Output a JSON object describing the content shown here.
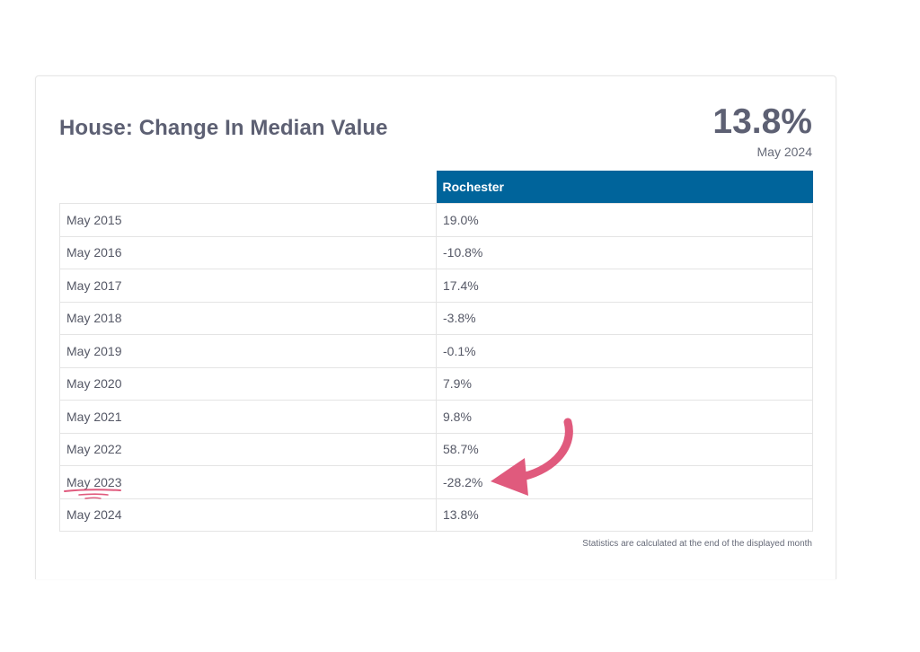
{
  "card": {
    "title": "House: Change In Median Value",
    "big_value": "13.8%",
    "big_value_date": "May 2024",
    "footnote": "Statistics are calculated at the end of the displayed month"
  },
  "table": {
    "columns": [
      "",
      "Rochester"
    ],
    "rows": [
      {
        "period": "May 2015",
        "value": "19.0%"
      },
      {
        "period": "May 2016",
        "value": "-10.8%"
      },
      {
        "period": "May 2017",
        "value": "17.4%"
      },
      {
        "period": "May 2018",
        "value": "-3.8%"
      },
      {
        "period": "May 2019",
        "value": "-0.1%"
      },
      {
        "period": "May 2020",
        "value": "7.9%"
      },
      {
        "period": "May 2021",
        "value": "9.8%"
      },
      {
        "period": "May 2022",
        "value": "58.7%"
      },
      {
        "period": "May 2023",
        "value": "-28.2%"
      },
      {
        "period": "May 2024",
        "value": "13.8%"
      }
    ]
  },
  "colors": {
    "header_blue": "#00649b",
    "title_gray": "#5d6073",
    "annotation_pink": "#e05a7d"
  },
  "annotations": {
    "highlighted_row": "May 2023",
    "arrow_icon": "curved-arrow-icon",
    "underline_icon": "scribble-underline-icon"
  }
}
